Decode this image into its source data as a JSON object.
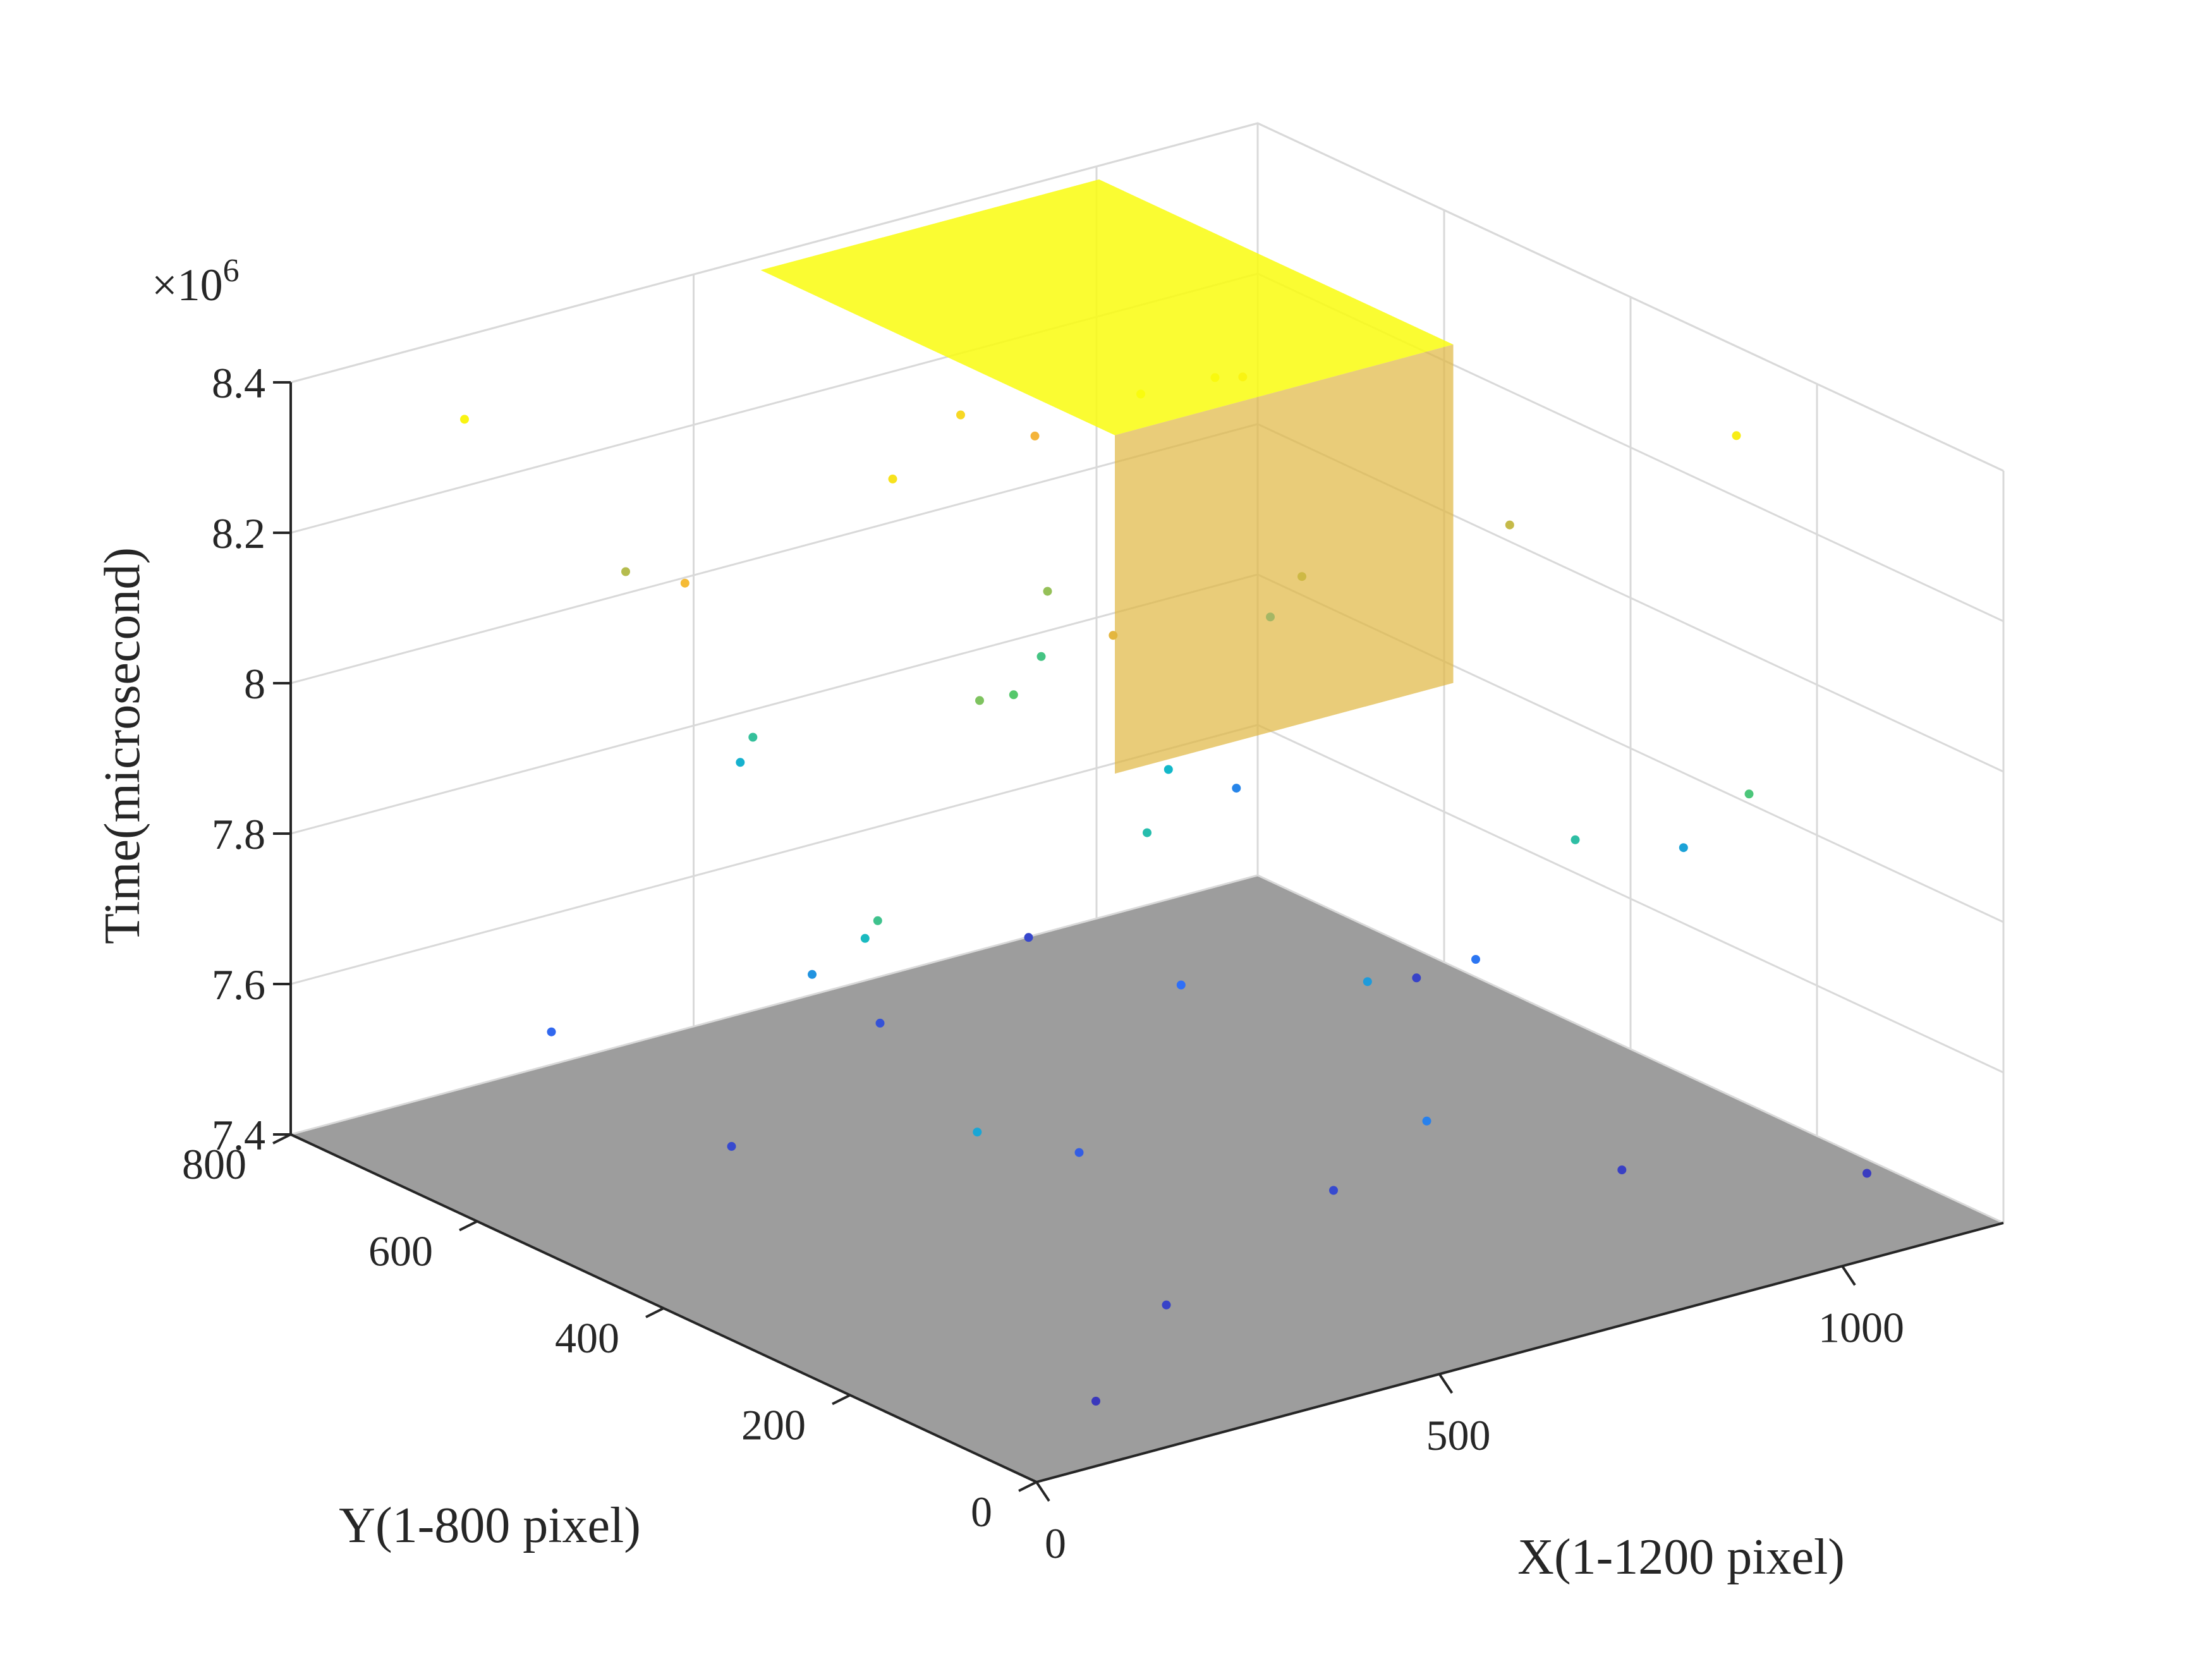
{
  "chart_data": {
    "type": "scatter",
    "title": "",
    "x_axis": {
      "label": "X(1-1200 pixel)",
      "range": [
        0,
        1200
      ],
      "ticks": [
        0,
        500,
        1000
      ],
      "tick_labels": [
        "0",
        "500",
        "1000"
      ]
    },
    "y_axis": {
      "label": "Y(1-800 pixel)",
      "range": [
        0,
        800
      ],
      "ticks": [
        0,
        200,
        400,
        600,
        800
      ],
      "tick_labels": [
        "0",
        "200",
        "400",
        "600",
        "800"
      ]
    },
    "z_axis": {
      "label": "Time(microsecond)",
      "range": [
        7.4,
        8.4
      ],
      "exponent_label": "×10",
      "exponent_power": "6",
      "ticks": [
        7.4,
        7.6,
        7.8,
        8.0,
        8.2,
        8.4
      ],
      "tick_labels": [
        "7.4",
        "7.6",
        "7.8",
        "8",
        "8.2",
        "8.4"
      ]
    },
    "grid": true,
    "colormap": [
      "#3e26a8",
      "#2f6ff7",
      "#13b8c9",
      "#56c86c",
      "#f4b43a",
      "#f9fb0e"
    ],
    "floor_color": "#8c8c8c",
    "points": [
      [
        120,
        40,
        7.45
      ],
      [
        300,
        120,
        7.48
      ],
      [
        600,
        200,
        7.5
      ],
      [
        900,
        150,
        7.47
      ],
      [
        1100,
        60,
        7.46
      ],
      [
        200,
        500,
        7.5
      ],
      [
        500,
        600,
        7.52
      ],
      [
        800,
        700,
        7.49
      ],
      [
        1050,
        500,
        7.48
      ],
      [
        400,
        300,
        7.55
      ],
      [
        700,
        450,
        7.6
      ],
      [
        950,
        350,
        7.62
      ],
      [
        150,
        650,
        7.58
      ],
      [
        600,
        100,
        7.65
      ],
      [
        1000,
        650,
        7.66
      ],
      [
        300,
        500,
        7.7
      ],
      [
        700,
        250,
        7.72
      ],
      [
        100,
        150,
        7.75
      ],
      [
        1150,
        300,
        7.74
      ],
      [
        500,
        750,
        7.78
      ],
      [
        800,
        550,
        7.8
      ],
      [
        250,
        400,
        7.82
      ],
      [
        1100,
        700,
        7.83
      ],
      [
        600,
        400,
        7.86
      ],
      [
        900,
        200,
        7.88
      ],
      [
        400,
        650,
        7.9
      ],
      [
        150,
        300,
        7.93
      ],
      [
        700,
        600,
        7.95
      ],
      [
        1000,
        100,
        7.97
      ],
      [
        550,
        500,
        8.0
      ],
      [
        450,
        450,
        8.05
      ],
      [
        650,
        550,
        8.08
      ],
      [
        850,
        450,
        8.1
      ],
      [
        300,
        700,
        8.12
      ],
      [
        1050,
        400,
        8.14
      ],
      [
        500,
        350,
        8.18
      ],
      [
        750,
        650,
        8.2
      ],
      [
        200,
        550,
        8.22
      ],
      [
        950,
        600,
        8.25
      ],
      [
        600,
        600,
        8.3
      ],
      [
        400,
        500,
        8.33
      ],
      [
        800,
        500,
        8.35
      ],
      [
        1100,
        200,
        8.36
      ],
      [
        100,
        700,
        8.38
      ],
      [
        650,
        450,
        8.4
      ]
    ],
    "dense_box": {
      "x": [
        560,
        980
      ],
      "y": [
        400,
        780
      ],
      "z": [
        7.95,
        8.4
      ]
    }
  }
}
